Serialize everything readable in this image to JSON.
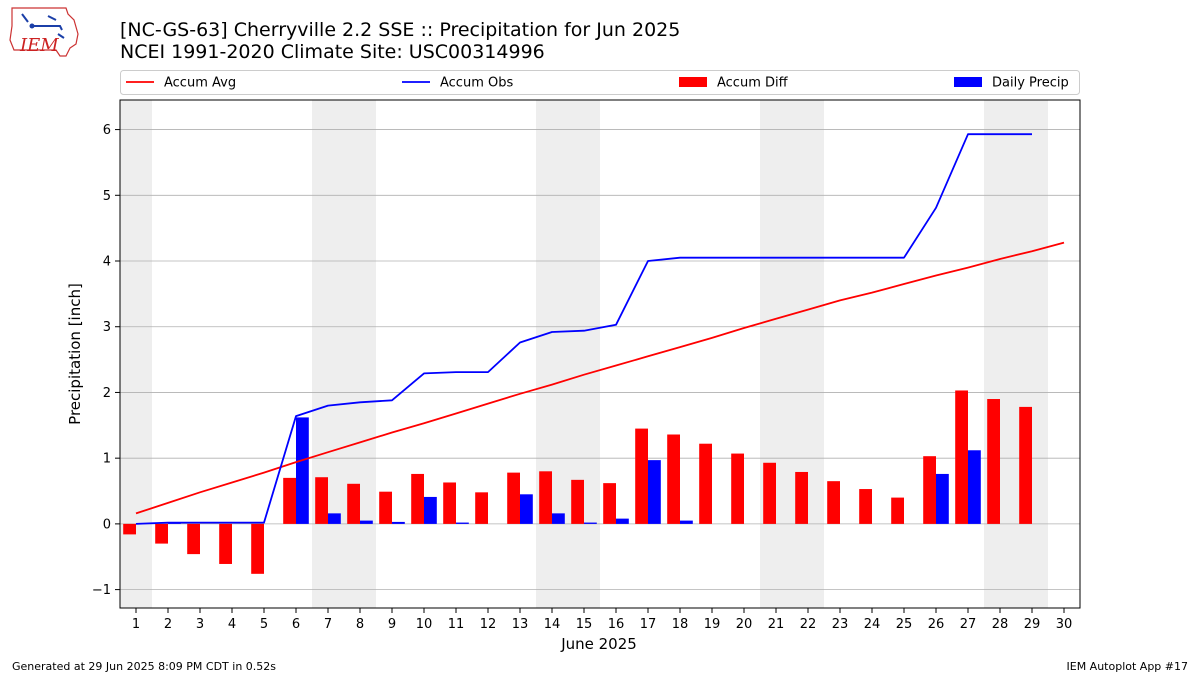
{
  "title": "[NC-GS-63] Cherryville 2.2 SSE :: Precipitation for Jun 2025",
  "subtitle": "NCEI 1991-2020 Climate Site: USC00314996",
  "logo_text": "IEM",
  "footer_left": "Generated at 29 Jun 2025 8:09 PM CDT in 0.52s",
  "footer_right": "IEM Autoplot App #17",
  "colors": {
    "avg": "#ff0000",
    "obs": "#0000ff",
    "diff": "#ff0000",
    "daily": "#0000ff",
    "weekend": "#eeeeee",
    "grid": "#b0b0b0"
  },
  "chart_data": {
    "type": "bar",
    "xlabel": "June 2025",
    "ylabel": "Precipitation [inch]",
    "xlim": [
      0.5,
      30.5
    ],
    "ylim": [
      -1.28,
      6.45
    ],
    "x_ticks": [
      1,
      2,
      3,
      4,
      5,
      6,
      7,
      8,
      9,
      10,
      11,
      12,
      13,
      14,
      15,
      16,
      17,
      18,
      19,
      20,
      21,
      22,
      23,
      24,
      25,
      26,
      27,
      28,
      29,
      30
    ],
    "y_ticks": [
      -1,
      0,
      1,
      2,
      3,
      4,
      5,
      6
    ],
    "grid": "horizontal",
    "legend_position": "top",
    "shaded_days": [
      1,
      7,
      8,
      14,
      15,
      21,
      22,
      28,
      29
    ],
    "series": [
      {
        "name": "Accum Avg",
        "type": "line",
        "x": [
          1,
          2,
          3,
          4,
          5,
          6,
          7,
          8,
          9,
          10,
          11,
          12,
          13,
          14,
          15,
          16,
          17,
          18,
          19,
          20,
          21,
          22,
          23,
          24,
          25,
          26,
          27,
          28,
          29,
          30
        ],
        "values": [
          0.16,
          0.32,
          0.48,
          0.63,
          0.78,
          0.94,
          1.09,
          1.24,
          1.39,
          1.53,
          1.68,
          1.83,
          1.98,
          2.12,
          2.27,
          2.41,
          2.55,
          2.69,
          2.83,
          2.98,
          3.12,
          3.26,
          3.4,
          3.52,
          3.65,
          3.78,
          3.9,
          4.03,
          4.15,
          4.28
        ]
      },
      {
        "name": "Accum Obs",
        "type": "line",
        "x": [
          1,
          2,
          3,
          4,
          5,
          6,
          7,
          8,
          9,
          10,
          11,
          12,
          13,
          14,
          15,
          16,
          17,
          18,
          19,
          20,
          21,
          22,
          23,
          24,
          25,
          26,
          27,
          28,
          29
        ],
        "values": [
          0.0,
          0.02,
          0.02,
          0.02,
          0.02,
          1.64,
          1.8,
          1.85,
          1.88,
          2.29,
          2.31,
          2.31,
          2.76,
          2.92,
          2.94,
          3.03,
          4.0,
          4.05,
          4.05,
          4.05,
          4.05,
          4.05,
          4.05,
          4.05,
          4.05,
          4.81,
          5.93,
          5.93,
          5.93
        ]
      },
      {
        "name": "Accum Diff",
        "type": "bar",
        "x": [
          1,
          2,
          3,
          4,
          5,
          6,
          7,
          8,
          9,
          10,
          11,
          12,
          13,
          14,
          15,
          16,
          17,
          18,
          19,
          20,
          21,
          22,
          23,
          24,
          25,
          26,
          27,
          28,
          29
        ],
        "values": [
          -0.16,
          -0.3,
          -0.46,
          -0.61,
          -0.76,
          0.7,
          0.71,
          0.61,
          0.49,
          0.76,
          0.63,
          0.48,
          0.78,
          0.8,
          0.67,
          0.62,
          1.45,
          1.36,
          1.22,
          1.07,
          0.93,
          0.79,
          0.65,
          0.53,
          0.4,
          1.03,
          2.03,
          1.9,
          1.78
        ]
      },
      {
        "name": "Daily Precip",
        "type": "bar",
        "x": [
          1,
          2,
          3,
          4,
          5,
          6,
          7,
          8,
          9,
          10,
          11,
          12,
          13,
          14,
          15,
          16,
          17,
          18,
          19,
          20,
          21,
          22,
          23,
          24,
          25,
          26,
          27,
          28,
          29
        ],
        "values": [
          0.0,
          0.02,
          0.0,
          0.0,
          0.0,
          1.62,
          0.16,
          0.05,
          0.03,
          0.41,
          0.02,
          0.0,
          0.45,
          0.16,
          0.02,
          0.08,
          0.97,
          0.05,
          0.0,
          0.0,
          0.0,
          0.0,
          0.0,
          0.0,
          0.0,
          0.76,
          1.12,
          0.0,
          0.0
        ]
      }
    ]
  }
}
